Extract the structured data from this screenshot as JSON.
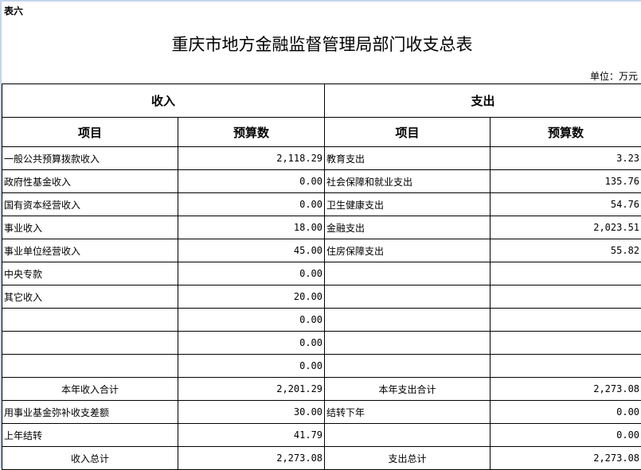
{
  "tag": "表六",
  "title": "重庆市地方金融监督管理局部门收支总表",
  "unit": "单位：万元",
  "header": {
    "income": "收入",
    "expense": "支出",
    "item": "项目",
    "budget": "预算数"
  },
  "rows": [
    [
      "一般公共预算拨款收入",
      "2,118.29",
      "教育支出",
      "3.23"
    ],
    [
      "政府性基金收入",
      "0.00",
      "社会保障和就业支出",
      "135.76"
    ],
    [
      "国有资本经营收入",
      "0.00",
      "卫生健康支出",
      "54.76"
    ],
    [
      "事业收入",
      "18.00",
      "金融支出",
      "2,023.51"
    ],
    [
      "事业单位经营收入",
      "45.00",
      "住房保障支出",
      "55.82"
    ],
    [
      "中央专款",
      "0.00",
      "",
      ""
    ],
    [
      "其它收入",
      "20.00",
      "",
      ""
    ],
    [
      "",
      "0.00",
      "",
      ""
    ],
    [
      "",
      "0.00",
      "",
      ""
    ],
    [
      "",
      "0.00",
      "",
      ""
    ]
  ],
  "subtotal": [
    "本年收入合计",
    "2,201.29",
    "本年支出合计",
    "2,273.08"
  ],
  "extra": [
    [
      "用事业基金弥补收支差额",
      "30.00",
      "结转下年",
      "0.00"
    ],
    [
      "上年结转",
      "41.79",
      "",
      "0.00"
    ]
  ],
  "total": [
    "收入总计",
    "2,273.08",
    "支出总计",
    "2,273.08"
  ]
}
